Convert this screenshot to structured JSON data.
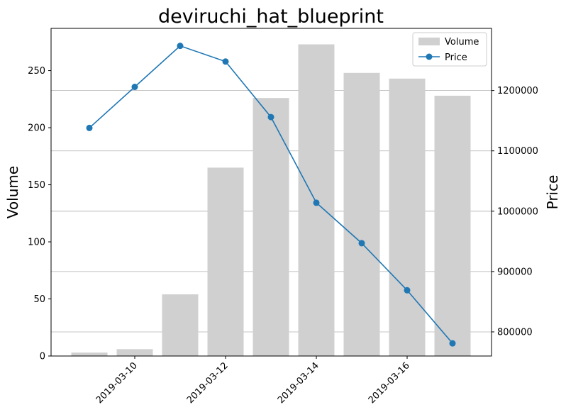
{
  "chart_data": {
    "type": "bar+line",
    "title": "deviruchi_hat_blueprint",
    "x": [
      "2019-03-09",
      "2019-03-10",
      "2019-03-11",
      "2019-03-12",
      "2019-03-13",
      "2019-03-14",
      "2019-03-15",
      "2019-03-16",
      "2019-03-17"
    ],
    "x_tick_labels": [
      "2019-03-10",
      "2019-03-12",
      "2019-03-14",
      "2019-03-16"
    ],
    "series": [
      {
        "name": "Volume",
        "type": "bar",
        "axis": "left",
        "color": "#d0d0d0",
        "values": [
          3,
          6,
          54,
          165,
          226,
          273,
          248,
          243,
          228
        ]
      },
      {
        "name": "Price",
        "type": "line",
        "axis": "right",
        "color": "#1f77b4",
        "values": [
          1138000,
          1206000,
          1274000,
          1248000,
          1156000,
          1014000,
          947000,
          869000,
          781000
        ]
      }
    ],
    "ylabel": "Volume",
    "ylim": [
      0,
      287
    ],
    "yticks": [
      0,
      50,
      100,
      150,
      200,
      250
    ],
    "y2label": "Price",
    "y2lim": [
      760000,
      1303000
    ],
    "y2ticks": [
      800000,
      900000,
      1000000,
      1100000,
      1200000
    ],
    "grid": "right-axis horizontal",
    "legend": "top-right"
  }
}
